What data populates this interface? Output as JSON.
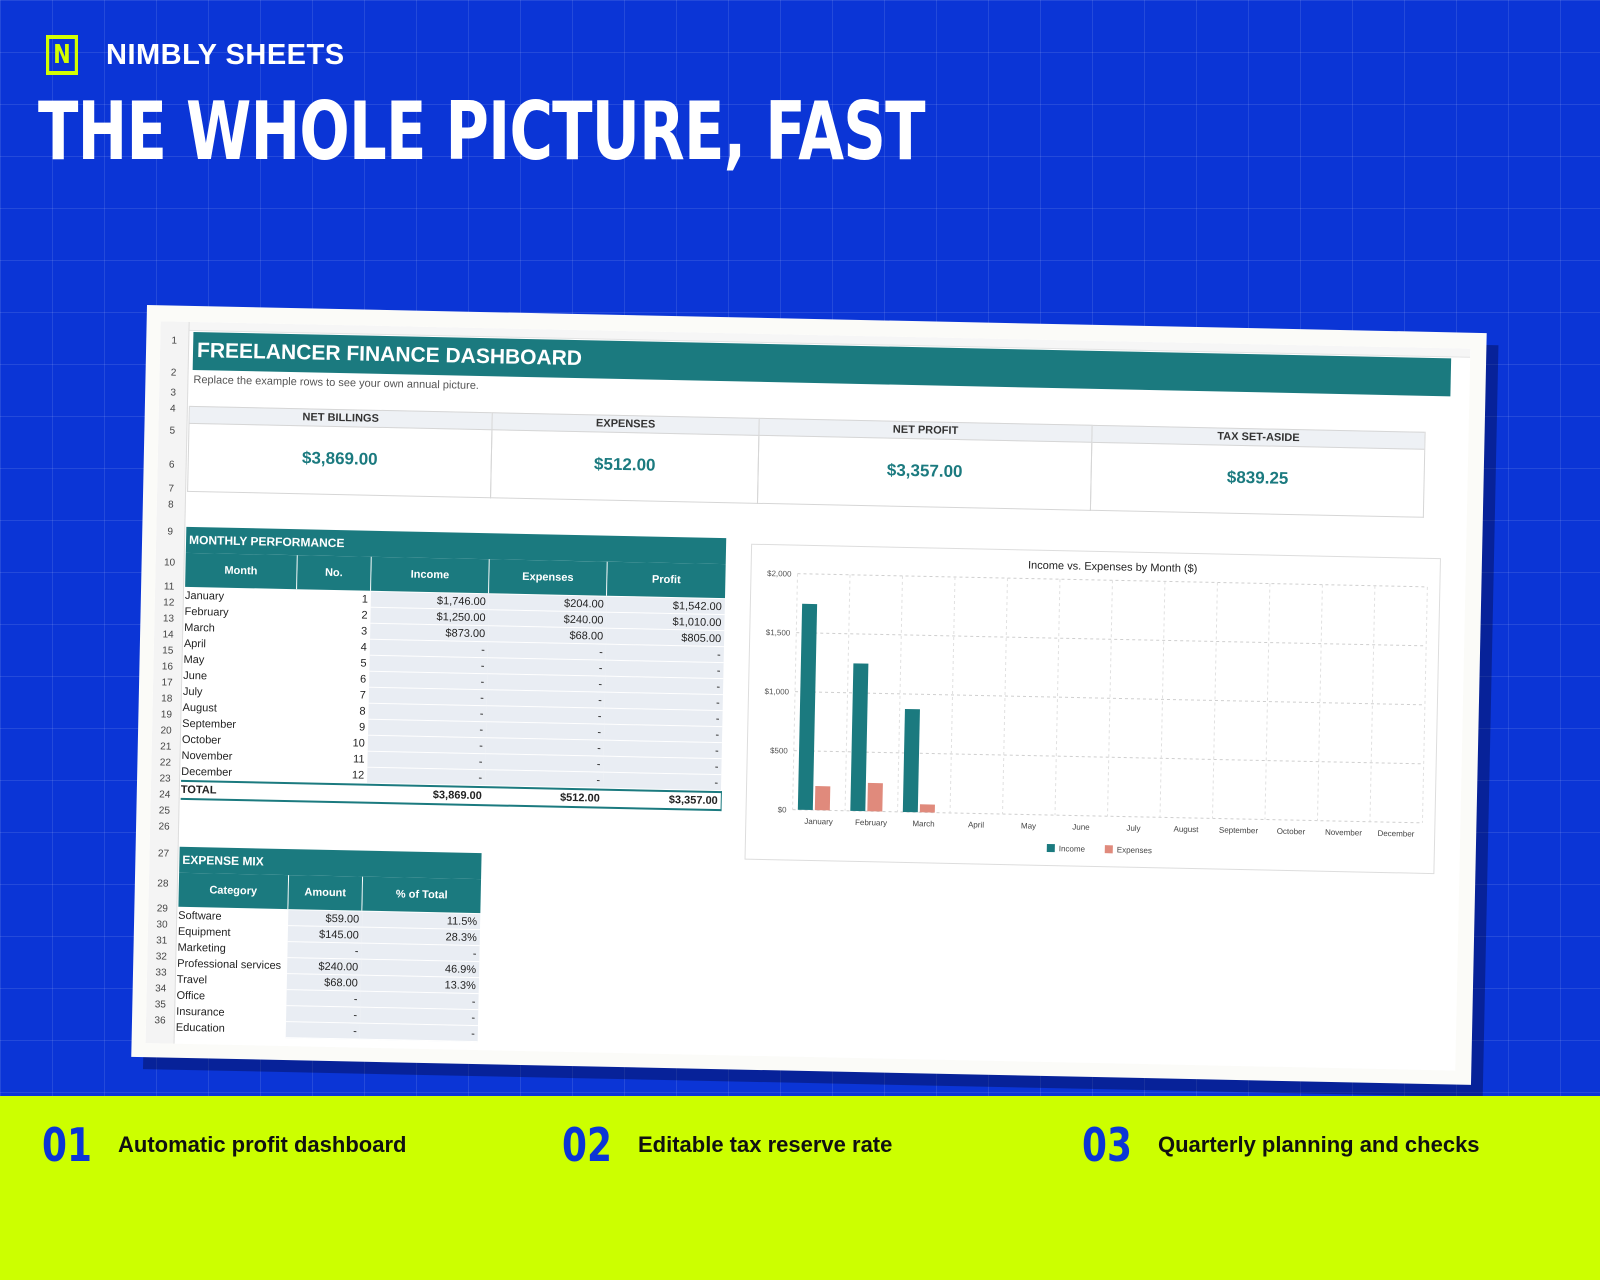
{
  "brand": {
    "logo_letter": "N",
    "name": "NIMBLY SHEETS"
  },
  "headline": "THE WHOLE PICTURE, FAST",
  "sheet": {
    "title": "FREELANCER FINANCE DASHBOARD",
    "subtitle": "Replace the example rows to see your own annual picture.",
    "row_numbers": [
      "1",
      "2",
      "3",
      "4",
      "5",
      "6",
      "7",
      "8",
      "9",
      "10",
      "11",
      "12",
      "13",
      "14",
      "15",
      "16",
      "17",
      "18",
      "19",
      "20",
      "21",
      "22",
      "23",
      "24",
      "25",
      "26",
      "27",
      "28",
      "29",
      "30",
      "31",
      "32",
      "33",
      "34",
      "35",
      "36"
    ],
    "kpis": [
      {
        "label": "NET BILLINGS",
        "value": "$3,869.00"
      },
      {
        "label": "EXPENSES",
        "value": "$512.00"
      },
      {
        "label": "NET PROFIT",
        "value": "$3,357.00"
      },
      {
        "label": "TAX SET-ASIDE",
        "value": "$839.25"
      }
    ],
    "monthly": {
      "title": "MONTHLY PERFORMANCE",
      "headers": [
        "Month",
        "No.",
        "Income",
        "Expenses",
        "Profit"
      ],
      "rows": [
        [
          "January",
          "1",
          "$1,746.00",
          "$204.00",
          "$1,542.00"
        ],
        [
          "February",
          "2",
          "$1,250.00",
          "$240.00",
          "$1,010.00"
        ],
        [
          "March",
          "3",
          "$873.00",
          "$68.00",
          "$805.00"
        ],
        [
          "April",
          "4",
          "-",
          "-",
          "-"
        ],
        [
          "May",
          "5",
          "-",
          "-",
          "-"
        ],
        [
          "June",
          "6",
          "-",
          "-",
          "-"
        ],
        [
          "July",
          "7",
          "-",
          "-",
          "-"
        ],
        [
          "August",
          "8",
          "-",
          "-",
          "-"
        ],
        [
          "September",
          "9",
          "-",
          "-",
          "-"
        ],
        [
          "October",
          "10",
          "-",
          "-",
          "-"
        ],
        [
          "November",
          "11",
          "-",
          "-",
          "-"
        ],
        [
          "December",
          "12",
          "-",
          "-",
          "-"
        ]
      ],
      "total": [
        "TOTAL",
        "",
        "$3,869.00",
        "$512.00",
        "$3,357.00"
      ]
    },
    "expense_mix": {
      "title": "EXPENSE MIX",
      "headers": [
        "Category",
        "Amount",
        "% of Total"
      ],
      "rows": [
        [
          "Software",
          "$59.00",
          "11.5%"
        ],
        [
          "Equipment",
          "$145.00",
          "28.3%"
        ],
        [
          "Marketing",
          "-",
          "-"
        ],
        [
          "Professional services",
          "$240.00",
          "46.9%"
        ],
        [
          "Travel",
          "$68.00",
          "13.3%"
        ],
        [
          "Office",
          "-",
          "-"
        ],
        [
          "Insurance",
          "-",
          "-"
        ],
        [
          "Education",
          "-",
          "-"
        ]
      ]
    }
  },
  "chart_data": {
    "type": "bar",
    "title": "Income vs. Expenses by Month ($)",
    "categories": [
      "January",
      "February",
      "March",
      "April",
      "May",
      "June",
      "July",
      "August",
      "September",
      "October",
      "November",
      "December"
    ],
    "series": [
      {
        "name": "Income",
        "values": [
          1746,
          1250,
          873,
          0,
          0,
          0,
          0,
          0,
          0,
          0,
          0,
          0
        ],
        "color": "#1b7a7f"
      },
      {
        "name": "Expenses",
        "values": [
          204,
          240,
          68,
          0,
          0,
          0,
          0,
          0,
          0,
          0,
          0,
          0
        ],
        "color": "#e08a7c"
      }
    ],
    "ylim": [
      0,
      2000
    ],
    "yticks": [
      0,
      500,
      1000,
      1500,
      2000
    ],
    "ytick_labels": [
      "$0",
      "$500",
      "$1,000",
      "$1,500",
      "$2,000"
    ],
    "grid": true,
    "legend": "bottom"
  },
  "features": [
    {
      "num": "01",
      "text": "Automatic profit dashboard"
    },
    {
      "num": "02",
      "text": "Editable tax reserve rate"
    },
    {
      "num": "03",
      "text": "Quarterly planning and checks"
    }
  ],
  "colors": {
    "background": "#0b35d6",
    "accent": "#ccff00",
    "teal": "#1b7a7f",
    "expense": "#e08a7c"
  }
}
